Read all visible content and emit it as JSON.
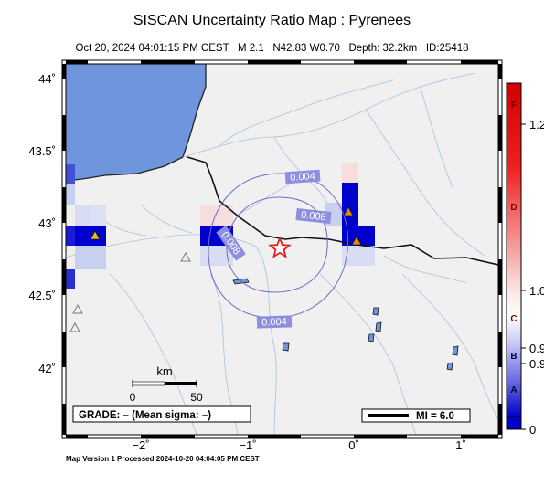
{
  "header": {
    "title": "SISCAN Uncertainty Ratio Map : Pyrenees",
    "date": "Oct 20, 2024 04:01:15 PM CEST",
    "magnitude": "M 2.1",
    "location": "N42.83 W0.70",
    "depth": "Depth: 32.2km",
    "event_id": "ID:25418"
  },
  "map": {
    "lat_labels": [
      "44˚",
      "43.5˚",
      "43˚",
      "42.5˚",
      "42˚"
    ],
    "lon_labels": [
      "−2˚",
      "−1˚",
      "0˚",
      "1˚"
    ],
    "contour_labels": [
      "0.004",
      "0.008",
      "0.008",
      "0.004"
    ],
    "scalebar": {
      "title": "km",
      "min": "0",
      "max": "50"
    },
    "grade_text": "GRADE: – (Mean sigma: –)",
    "mi_legend": "MI = 6.0",
    "colors": {
      "sea": "#6f95dc",
      "land": "#f0f0f0",
      "cell_dark": "#0000cc",
      "cell_light": "#c8d0f0",
      "epicenter": "#dd2222",
      "station": "#f2c200",
      "contour": "#6a6acc"
    }
  },
  "colorbar": {
    "grades": [
      "F",
      "D",
      "C",
      "B",
      "A"
    ],
    "values": [
      "1.2",
      "1.0",
      "0.9",
      "0.9",
      "0"
    ],
    "colors": [
      "#d40000",
      "#ffffff",
      "#0000c8"
    ]
  },
  "footer": {
    "processed": "Map Version 1 Processed 2024-10-20 04:04:05 PM CEST"
  }
}
